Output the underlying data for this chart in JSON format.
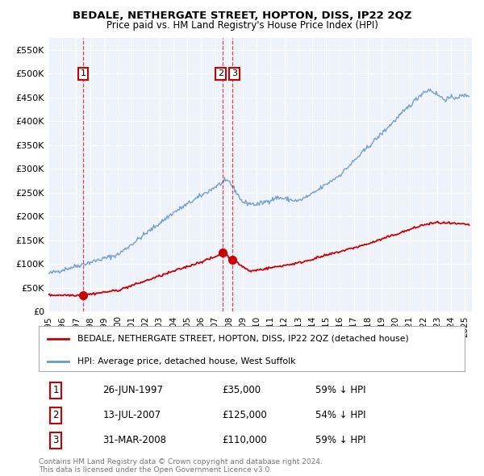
{
  "title": "BEDALE, NETHERGATE STREET, HOPTON, DISS, IP22 2QZ",
  "subtitle": "Price paid vs. HM Land Registry's House Price Index (HPI)",
  "ylabel_ticks": [
    "£0",
    "£50K",
    "£100K",
    "£150K",
    "£200K",
    "£250K",
    "£300K",
    "£350K",
    "£400K",
    "£450K",
    "£500K",
    "£550K"
  ],
  "ytick_values": [
    0,
    50000,
    100000,
    150000,
    200000,
    250000,
    300000,
    350000,
    400000,
    450000,
    500000,
    550000
  ],
  "xmin": 1995.0,
  "xmax": 2025.5,
  "ymin": 0,
  "ymax": 575000,
  "transaction_dates": [
    1997.49,
    2007.54,
    2008.25
  ],
  "transaction_prices": [
    35000,
    125000,
    110000
  ],
  "transaction_labels": [
    "1",
    "2",
    "3"
  ],
  "transaction_date_str": [
    "26-JUN-1997",
    "13-JUL-2007",
    "31-MAR-2008"
  ],
  "transaction_price_str": [
    "£35,000",
    "£125,000",
    "£110,000"
  ],
  "transaction_hpi_str": [
    "59% ↓ HPI",
    "54% ↓ HPI",
    "59% ↓ HPI"
  ],
  "legend_red_label": "BEDALE, NETHERGATE STREET, HOPTON, DISS, IP22 2QZ (detached house)",
  "legend_blue_label": "HPI: Average price, detached house, West Suffolk",
  "footer_line1": "Contains HM Land Registry data © Crown copyright and database right 2024.",
  "footer_line2": "This data is licensed under the Open Government Licence v3.0.",
  "red_color": "#cc0000",
  "blue_color": "#6699cc",
  "bg_color": "#eef2fa",
  "grid_color": "#ffffff"
}
